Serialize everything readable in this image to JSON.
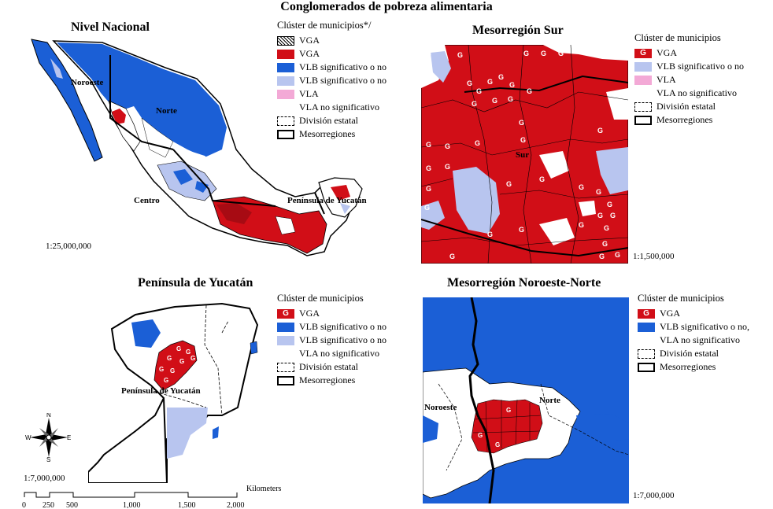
{
  "title": "Conglomerados de pobreza alimentaria",
  "colors": {
    "vga": "#d10e17",
    "vlb_dark": "#1b5fd6",
    "vlb_light": "#b8c5ef",
    "vla": "#f3a9d6"
  },
  "panels": {
    "nacional": {
      "title": "Nivel Nacional",
      "scale": "1:25,000,000",
      "labels": {
        "noroeste": "Noroeste",
        "norte": "Norte",
        "centro": "Centro",
        "peninsula": "Península de Yucatán"
      },
      "legend": {
        "heading": "Clúster de municipios*/",
        "items": [
          "VGA",
          "VGA",
          "VLB significativo o no",
          "VLB significativo o no",
          "VLA",
          "VLA no significativo",
          "División estatal",
          "Mesorregiones"
        ]
      }
    },
    "sur": {
      "title": "Mesorregión Sur",
      "scale": "1:1,500,000",
      "labels": {
        "sur": "Sur"
      },
      "legend": {
        "heading": "Clúster de municipios",
        "items": [
          "VGA",
          "VLB significativo o no",
          "VLA",
          "VLA no significativo",
          "División estatal",
          "Mesorregiones"
        ]
      }
    },
    "yucatan": {
      "title": "Península de Yucatán",
      "scale": "1:7,000,000",
      "labels": {
        "peninsula": "Península de Yucatán"
      },
      "legend": {
        "heading": "Clúster de municipios",
        "items": [
          "VGA",
          "VLB significativo o no",
          "VLB significativo o no",
          "VLA no significativo",
          "División estatal",
          "Mesorregiones"
        ]
      },
      "scalebar": {
        "ticks": [
          "0",
          "250",
          "500",
          "1,000",
          "1,500",
          "2,000"
        ],
        "unit": "Kilometers"
      },
      "compass": {
        "n": "N",
        "s": "S",
        "e": "E",
        "w": "W"
      }
    },
    "noroeste_norte": {
      "title": "Mesorregión Noroeste-Norte",
      "scale": "1:7,000,000",
      "labels": {
        "noroeste": "Noroeste",
        "norte": "Norte"
      },
      "legend": {
        "heading": "Clúster de municipios",
        "items": [
          "VGA",
          "VLB significativo o no,",
          "VLA no significativo",
          "División estatal",
          "Mesorregiones"
        ]
      }
    }
  }
}
